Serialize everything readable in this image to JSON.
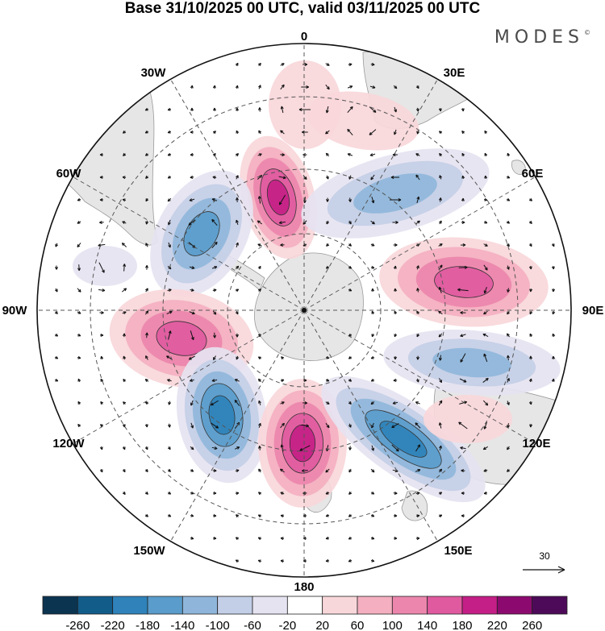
{
  "title": "Base 31/10/2025 00 UTC, valid 03/11/2025 00 UTC",
  "brand": "MODES",
  "brand_mark": "©",
  "map": {
    "projection": "south-polar-stereographic",
    "longitude_labels": [
      "0",
      "30E",
      "60E",
      "90E",
      "120E",
      "150E",
      "180",
      "150W",
      "120W",
      "90W",
      "60W",
      "30W"
    ],
    "reference_vector_label": "30",
    "colors": {
      "land": "#e6e6e6",
      "coast": "#9a9a9a",
      "grid": "#555555"
    }
  },
  "colorbar": {
    "ticks": [
      "-260",
      "-220",
      "-180",
      "-140",
      "-100",
      "-60",
      "-20",
      "20",
      "60",
      "100",
      "140",
      "180",
      "220",
      "260"
    ],
    "colors": [
      "#0b3450",
      "#125c8a",
      "#2f82ba",
      "#5a9ccb",
      "#8fb6da",
      "#c3cfe7",
      "#e6e3f1",
      "#ffffff",
      "#f8d7da",
      "#f4b0c0",
      "#ec86ad",
      "#e05a9f",
      "#c41f86",
      "#8c0a6f",
      "#4d0a58"
    ]
  }
}
